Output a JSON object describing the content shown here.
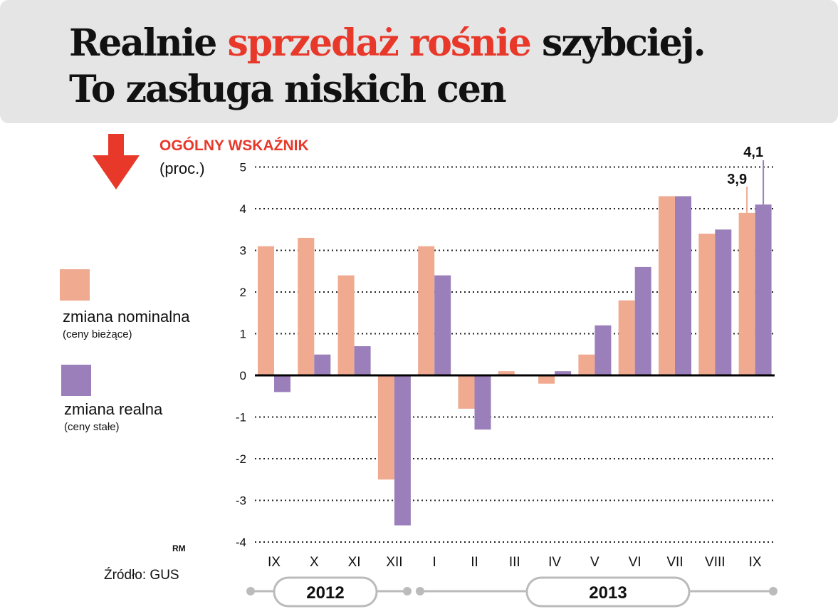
{
  "title": {
    "line1_a": "Realnie ",
    "line1_highlight": "sprzedaż rośnie",
    "line1_b": " szybciej.",
    "line2": "To zasługa niskich cen"
  },
  "indicator": {
    "label": "OGÓLNY WSKAŹNIK",
    "unit": "(proc.)"
  },
  "legend": [
    {
      "label": "zmiana nominalna",
      "sub": "(ceny bieżące)"
    },
    {
      "label": "zmiana realna",
      "sub": "(ceny stałe)"
    }
  ],
  "credit": "RM",
  "source": "Źródło: GUS",
  "years": [
    "2012",
    "2013"
  ],
  "colors": {
    "nominal": "#efaa90",
    "real": "#9b7fba",
    "accent": "#e8382a",
    "title_bg": "#e5e5e5"
  },
  "chart_data": {
    "type": "bar",
    "title": "OGÓLNY WSKAŹNIK",
    "ylabel": "(proc.)",
    "categories": [
      "IX",
      "X",
      "XI",
      "XII",
      "I",
      "II",
      "III",
      "IV",
      "V",
      "VI",
      "VII",
      "VIII",
      "IX"
    ],
    "yticks": [
      "5",
      "4",
      "3",
      "2",
      "1",
      "0",
      "-1",
      "-2",
      "-3",
      "-4"
    ],
    "ylim": [
      -4,
      5
    ],
    "grid": true,
    "series": [
      {
        "name": "zmiana nominalna",
        "values": [
          3.1,
          3.3,
          2.4,
          -2.5,
          3.1,
          -0.8,
          0.1,
          -0.2,
          0.5,
          1.8,
          4.3,
          3.4,
          3.9
        ]
      },
      {
        "name": "zmiana realna",
        "values": [
          -0.4,
          0.5,
          0.7,
          -3.6,
          2.4,
          -1.3,
          0.0,
          0.1,
          1.2,
          2.6,
          4.3,
          3.5,
          4.1
        ]
      }
    ],
    "annotations": [
      "3,9",
      "4,1"
    ]
  }
}
